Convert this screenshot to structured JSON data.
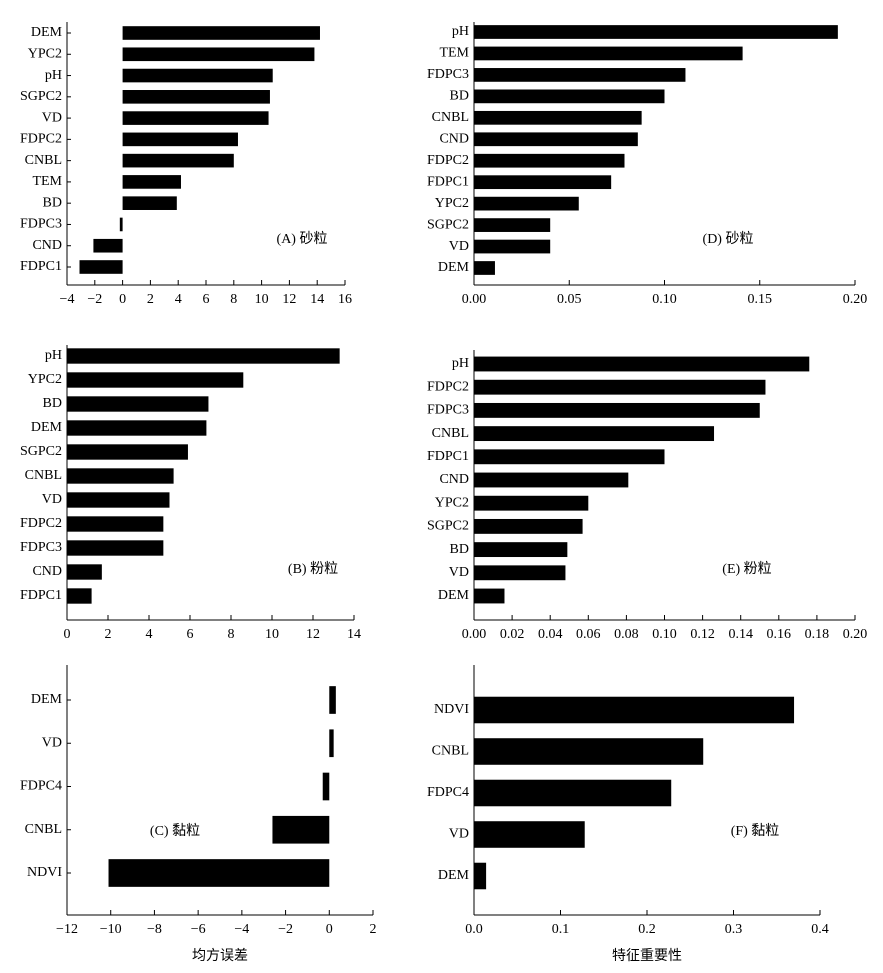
{
  "chart_data": [
    {
      "type": "barh",
      "annotation": "(A) 砂粒",
      "color": "#000000",
      "categories": [
        "DEM",
        "YPC2",
        "pH",
        "SGPC2",
        "VD",
        "FDPC2",
        "CNBL",
        "TEM",
        "BD",
        "FDPC3",
        "CND",
        "FDPC1"
      ],
      "values": [
        14.2,
        13.8,
        10.8,
        10.6,
        10.5,
        8.3,
        8.0,
        4.2,
        3.9,
        -0.2,
        -2.1,
        -3.1
      ],
      "xlim": [
        -4,
        16
      ],
      "xticks": [
        {
          "value": -4,
          "label": "−4"
        },
        {
          "value": -2,
          "label": "−2"
        },
        0,
        2,
        4,
        6,
        8,
        10,
        12,
        14,
        16
      ]
    },
    {
      "type": "barh",
      "annotation": "(D) 砂粒",
      "color": "#000000",
      "categories": [
        "pH",
        "TEM",
        "FDPC3",
        "BD",
        "CNBL",
        "CND",
        "FDPC2",
        "FDPC1",
        "YPC2",
        "SGPC2",
        "VD",
        "DEM"
      ],
      "values": [
        0.191,
        0.141,
        0.111,
        0.1,
        0.088,
        0.086,
        0.079,
        0.072,
        0.055,
        0.04,
        0.04,
        0.011
      ],
      "xlim": [
        0,
        0.2
      ],
      "xticks": [
        {
          "value": 0,
          "label": "0.00"
        },
        {
          "value": 0.05,
          "label": "0.05"
        },
        {
          "value": 0.1,
          "label": "0.10"
        },
        {
          "value": 0.15,
          "label": "0.15"
        },
        {
          "value": 0.2,
          "label": "0.20"
        }
      ]
    },
    {
      "type": "barh",
      "annotation": "(B) 粉粒",
      "color": "#000000",
      "categories": [
        "pH",
        "YPC2",
        "BD",
        "DEM",
        "SGPC2",
        "CNBL",
        "VD",
        "FDPC2",
        "FDPC3",
        "CND",
        "FDPC1"
      ],
      "values": [
        13.3,
        8.6,
        6.9,
        6.8,
        5.9,
        5.2,
        5.0,
        4.7,
        4.7,
        1.7,
        1.2
      ],
      "xlim": [
        0,
        14
      ],
      "xticks": [
        0,
        2,
        4,
        6,
        8,
        10,
        12,
        14
      ]
    },
    {
      "type": "barh",
      "annotation": "(E) 粉粒",
      "color": "#000000",
      "categories": [
        "pH",
        "FDPC2",
        "FDPC3",
        "CNBL",
        "FDPC1",
        "CND",
        "YPC2",
        "SGPC2",
        "BD",
        "VD",
        "DEM"
      ],
      "values": [
        0.176,
        0.153,
        0.15,
        0.126,
        0.1,
        0.081,
        0.06,
        0.057,
        0.049,
        0.048,
        0.016
      ],
      "xlim": [
        0,
        0.2
      ],
      "xticks": [
        {
          "value": 0,
          "label": "0.00"
        },
        {
          "value": 0.02,
          "label": "0.02"
        },
        {
          "value": 0.04,
          "label": "0.04"
        },
        {
          "value": 0.06,
          "label": "0.06"
        },
        {
          "value": 0.08,
          "label": "0.08"
        },
        {
          "value": 0.1,
          "label": "0.10"
        },
        {
          "value": 0.12,
          "label": "0.12"
        },
        {
          "value": 0.14,
          "label": "0.14"
        },
        {
          "value": 0.16,
          "label": "0.16"
        },
        {
          "value": 0.18,
          "label": "0.18"
        },
        {
          "value": 0.2,
          "label": "0.20"
        }
      ]
    },
    {
      "type": "barh",
      "annotation": "(C) 黏粒",
      "xlabel": "均方误差",
      "color": "#000000",
      "categories": [
        "DEM",
        "VD",
        "FDPC4",
        "CNBL",
        "NDVI"
      ],
      "values": [
        0.3,
        0.2,
        -0.3,
        -2.6,
        -10.1
      ],
      "xlim": [
        -12,
        2
      ],
      "xticks": [
        {
          "value": -12,
          "label": "−12"
        },
        {
          "value": -10,
          "label": "−10"
        },
        {
          "value": -8,
          "label": "−8"
        },
        {
          "value": -6,
          "label": "−6"
        },
        {
          "value": -4,
          "label": "−4"
        },
        {
          "value": -2,
          "label": "−2"
        },
        0,
        2
      ]
    },
    {
      "type": "barh",
      "annotation": "(F) 黏粒",
      "xlabel": "特征重要性",
      "color": "#000000",
      "categories": [
        "NDVI",
        "CNBL",
        "FDPC4",
        "VD",
        "DEM"
      ],
      "values": [
        0.37,
        0.265,
        0.228,
        0.128,
        0.014
      ],
      "xlim": [
        0,
        0.4
      ],
      "xticks": [
        {
          "value": 0,
          "label": "0.0"
        },
        {
          "value": 0.1,
          "label": "0.1"
        },
        {
          "value": 0.2,
          "label": "0.2"
        },
        {
          "value": 0.3,
          "label": "0.3"
        },
        {
          "value": 0.4,
          "label": "0.4"
        }
      ]
    }
  ]
}
